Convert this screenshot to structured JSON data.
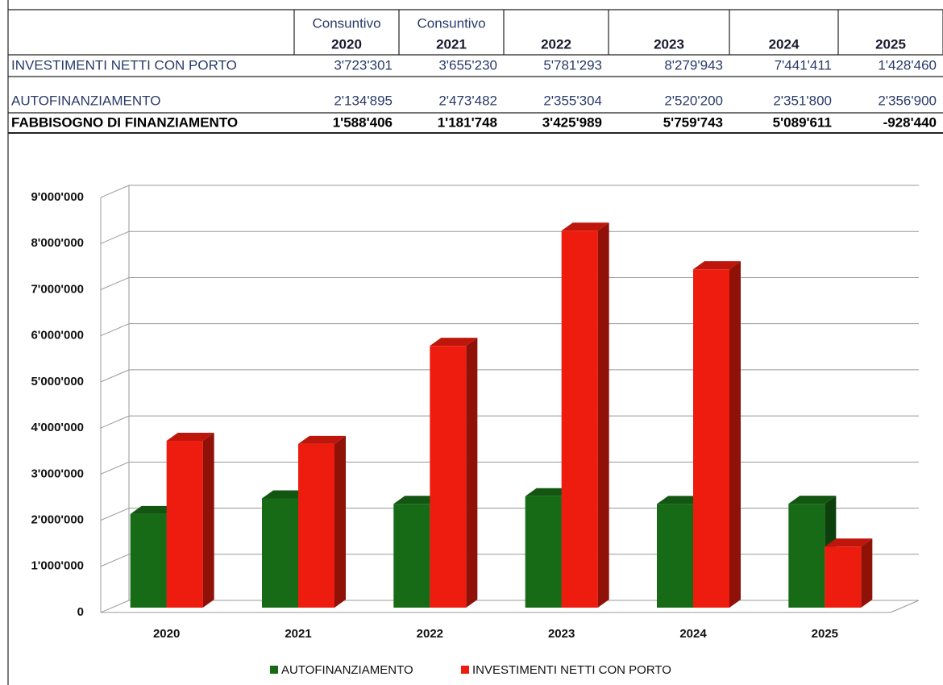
{
  "table": {
    "columns": [
      {
        "note": "Consuntivo",
        "year": "2020"
      },
      {
        "note": "Consuntivo",
        "year": "2021"
      },
      {
        "year": "2022"
      },
      {
        "year": "2023"
      },
      {
        "year": "2024"
      },
      {
        "year": "2025"
      }
    ],
    "rows": [
      {
        "label": "INVESTIMENTI NETTI CON PORTO",
        "cells": [
          "3'723'301",
          "3'655'230",
          "5'781'293",
          "8'279'943",
          "7'441'411",
          "1'428'460"
        ]
      },
      {
        "label": "AUTOFINANZIAMENTO",
        "cells": [
          "2'134'895",
          "2'473'482",
          "2'355'304",
          "2'520'200",
          "2'351'800",
          "2'356'900"
        ]
      },
      {
        "label": "FABBISOGNO DI FINANZIAMENTO",
        "cells": [
          "1'588'406",
          "1'181'748",
          "3'425'989",
          "5'759'743",
          "5'089'611",
          "-928'440"
        ],
        "bold": true
      }
    ]
  },
  "chart_data": {
    "type": "bar3d",
    "categories": [
      "2020",
      "2021",
      "2022",
      "2023",
      "2024",
      "2025"
    ],
    "series": [
      {
        "name": "AUTOFINANZIAMENTO",
        "color": "#176b17",
        "values": [
          2134895,
          2473482,
          2355304,
          2520200,
          2351800,
          2356900
        ]
      },
      {
        "name": "INVESTIMENTI NETTI CON PORTO",
        "color": "#ee1c0e",
        "values": [
          3723301,
          3655230,
          5781293,
          8279943,
          7441411,
          1428460
        ]
      }
    ],
    "ylim": [
      0,
      9000000
    ],
    "yticks": [
      0,
      {
        "value": 1000000,
        "label": "1'000'000"
      },
      {
        "value": 2000000,
        "label": "2'000'000"
      },
      {
        "value": 3000000,
        "label": "3'000'000"
      },
      {
        "value": 4000000,
        "label": "4'000'000"
      },
      {
        "value": 5000000,
        "label": "5'000'000"
      },
      {
        "value": 6000000,
        "label": "6'000'000"
      },
      {
        "value": 7000000,
        "label": "7'000'000"
      },
      {
        "value": 8000000,
        "label": "8'000'000"
      },
      {
        "value": 9000000,
        "label": "9'000'000"
      }
    ],
    "grid": true,
    "legend": "bottom"
  }
}
